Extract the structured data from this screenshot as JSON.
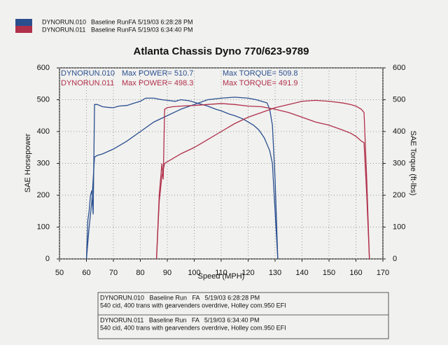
{
  "chart_data": {
    "type": "line",
    "title": "Atlanta Chassis Dyno 770/623-9789",
    "header_legend": [
      {
        "name": "DYNORUN.010",
        "description": "Baseline RunFA",
        "date": "5/19/03 6:28:28 PM",
        "color": "#2a4f8f"
      },
      {
        "name": "DYNORUN.011",
        "description": "Baseline RunFA",
        "date": "5/19/03 6:34:40 PM",
        "color": "#b0304a"
      }
    ],
    "annotations": [
      {
        "run": "DYNORUN.010",
        "power": "Max POWER= 510.7",
        "torque": "Max TORQUE= 509.8",
        "color": "#2a4f8f"
      },
      {
        "run": "DYNORUN.011",
        "power": "Max POWER= 498.3",
        "torque": "Max TORQUE= 491.9",
        "color": "#b0304a"
      }
    ],
    "xlabel": "Speed (MPH)",
    "ylabel": "SAE Horsepower",
    "y2label": "SAE Torque (ft-lbs)",
    "xlim": [
      50,
      170
    ],
    "xticks": [
      50,
      60,
      70,
      80,
      90,
      100,
      110,
      120,
      130,
      140,
      150,
      160,
      170
    ],
    "ylim": [
      0,
      600
    ],
    "yticks": [
      0,
      100,
      200,
      300,
      400,
      500,
      600
    ],
    "y2lim": [
      0,
      600
    ],
    "y2ticks": [
      0,
      100,
      200,
      300,
      400,
      500,
      600
    ],
    "grid": true,
    "series": [
      {
        "color": "#2a4f8f",
        "axis": "y2",
        "x": [
          60,
          60.5,
          61,
          61.5,
          62,
          62.5,
          63,
          64,
          66,
          68,
          70,
          72,
          75,
          78,
          80,
          82,
          85,
          88,
          90,
          93,
          95,
          98,
          100,
          103,
          105,
          108,
          110,
          113,
          115,
          118,
          120,
          122,
          124,
          126,
          128,
          129,
          130,
          131
        ],
        "values": [
          0,
          120,
          150,
          200,
          215,
          140,
          485,
          485,
          478,
          476,
          475,
          480,
          482,
          490,
          495,
          505,
          505,
          500,
          498,
          495,
          500,
          497,
          492,
          485,
          480,
          470,
          465,
          455,
          450,
          440,
          430,
          420,
          405,
          380,
          340,
          300,
          150,
          0
        ]
      },
      {
        "color": "#2a4f8f",
        "x": [
          60,
          61,
          62,
          63,
          64,
          66,
          70,
          75,
          80,
          85,
          90,
          95,
          100,
          105,
          110,
          115,
          120,
          123,
          125,
          127,
          128,
          129,
          130,
          131
        ],
        "values": [
          0,
          100,
          180,
          320,
          325,
          330,
          345,
          370,
          400,
          430,
          450,
          470,
          485,
          500,
          505,
          508,
          505,
          500,
          495,
          490,
          470,
          420,
          250,
          0
        ]
      },
      {
        "color": "#b0304a",
        "axis": "y2",
        "x": [
          86,
          87,
          88,
          88.5,
          89,
          90,
          92,
          95,
          100,
          105,
          110,
          115,
          120,
          125,
          130,
          135,
          140,
          145,
          150,
          155,
          158,
          160,
          162,
          163,
          164,
          165
        ],
        "values": [
          0,
          200,
          300,
          250,
          470,
          475,
          478,
          480,
          482,
          485,
          488,
          485,
          480,
          478,
          470,
          460,
          445,
          430,
          420,
          405,
          395,
          385,
          370,
          365,
          200,
          0
        ]
      },
      {
        "color": "#b0304a",
        "x": [
          86,
          87,
          88,
          89,
          90,
          92,
          95,
          100,
          105,
          110,
          115,
          120,
          125,
          130,
          135,
          140,
          145,
          150,
          155,
          158,
          160,
          162,
          163,
          164,
          165
        ],
        "values": [
          0,
          180,
          260,
          300,
          305,
          315,
          330,
          350,
          375,
          400,
          425,
          445,
          460,
          475,
          485,
          495,
          498,
          495,
          490,
          485,
          480,
          470,
          460,
          250,
          0
        ]
      }
    ],
    "notes": [
      {
        "line1": "DYNORUN.010   Baseline Run   FA   5/19/03 6:28:28 PM",
        "line2": "540 cid, 400 trans with gearvenders overdrive, Holley com.950 EFI"
      },
      {
        "line1": "DYNORUN.011   Baseline Run   FA   5/19/03 6:34:40 PM",
        "line2": "540 cid, 400 trans with gearvenders overdrive, Holley com.950 EFI"
      }
    ]
  }
}
